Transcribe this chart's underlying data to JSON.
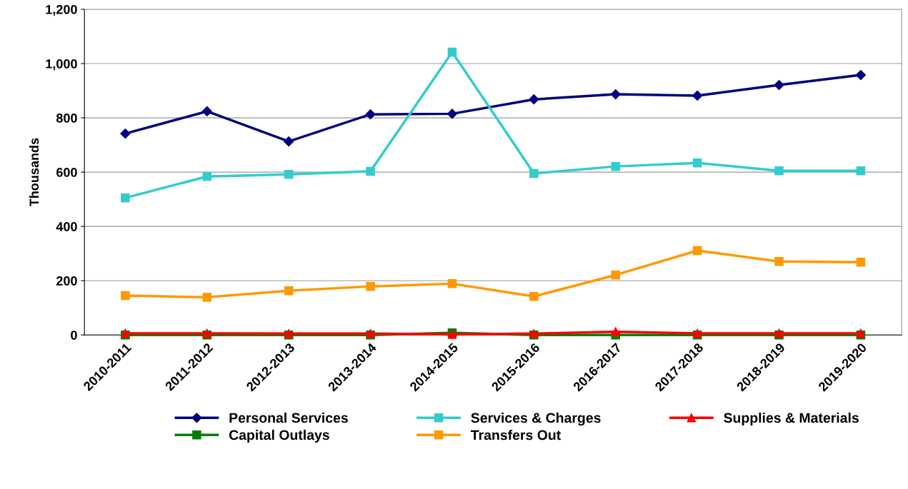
{
  "chart_data": {
    "type": "line",
    "ylabel": "Thousands",
    "categories": [
      "2010-2011",
      "2011-2012",
      "2012-2013",
      "2013-2014",
      "2014-2015",
      "2015-2016",
      "2016-2017",
      "2017-2018",
      "2018-2019",
      "2019-2020"
    ],
    "series": [
      {
        "name": "Personal Services",
        "color": "#000080",
        "marker": "diamond",
        "values": [
          742,
          824,
          713,
          813,
          815,
          868,
          887,
          882,
          921,
          958
        ]
      },
      {
        "name": "Services & Charges",
        "color": "#33cccc",
        "marker": "square",
        "values": [
          505,
          584,
          592,
          603,
          1042,
          595,
          621,
          634,
          605,
          605
        ]
      },
      {
        "name": "Supplies & Materials",
        "color": "#ff0000",
        "marker": "triangle",
        "values": [
          6,
          6,
          5,
          5,
          2,
          5,
          12,
          6,
          6,
          6
        ]
      },
      {
        "name": "Capital Outlays",
        "color": "#008000",
        "marker": "square",
        "values": [
          0,
          0,
          0,
          0,
          8,
          0,
          0,
          0,
          0,
          0
        ]
      },
      {
        "name": "Transfers Out",
        "color": "#ff9900",
        "marker": "square",
        "values": [
          145,
          139,
          163,
          179,
          189,
          142,
          221,
          311,
          271,
          268
        ]
      }
    ],
    "ylim": [
      0,
      1200
    ],
    "yticks": [
      {
        "value": 0,
        "label": "0"
      },
      {
        "value": 200,
        "label": "200"
      },
      {
        "value": 400,
        "label": "400"
      },
      {
        "value": 600,
        "label": "600"
      },
      {
        "value": 800,
        "label": "800"
      },
      {
        "value": 1000,
        "label": "1,000"
      },
      {
        "value": 1200,
        "label": "1,200"
      }
    ],
    "grid": "y",
    "legend": "bottom",
    "line_style": "solid"
  }
}
